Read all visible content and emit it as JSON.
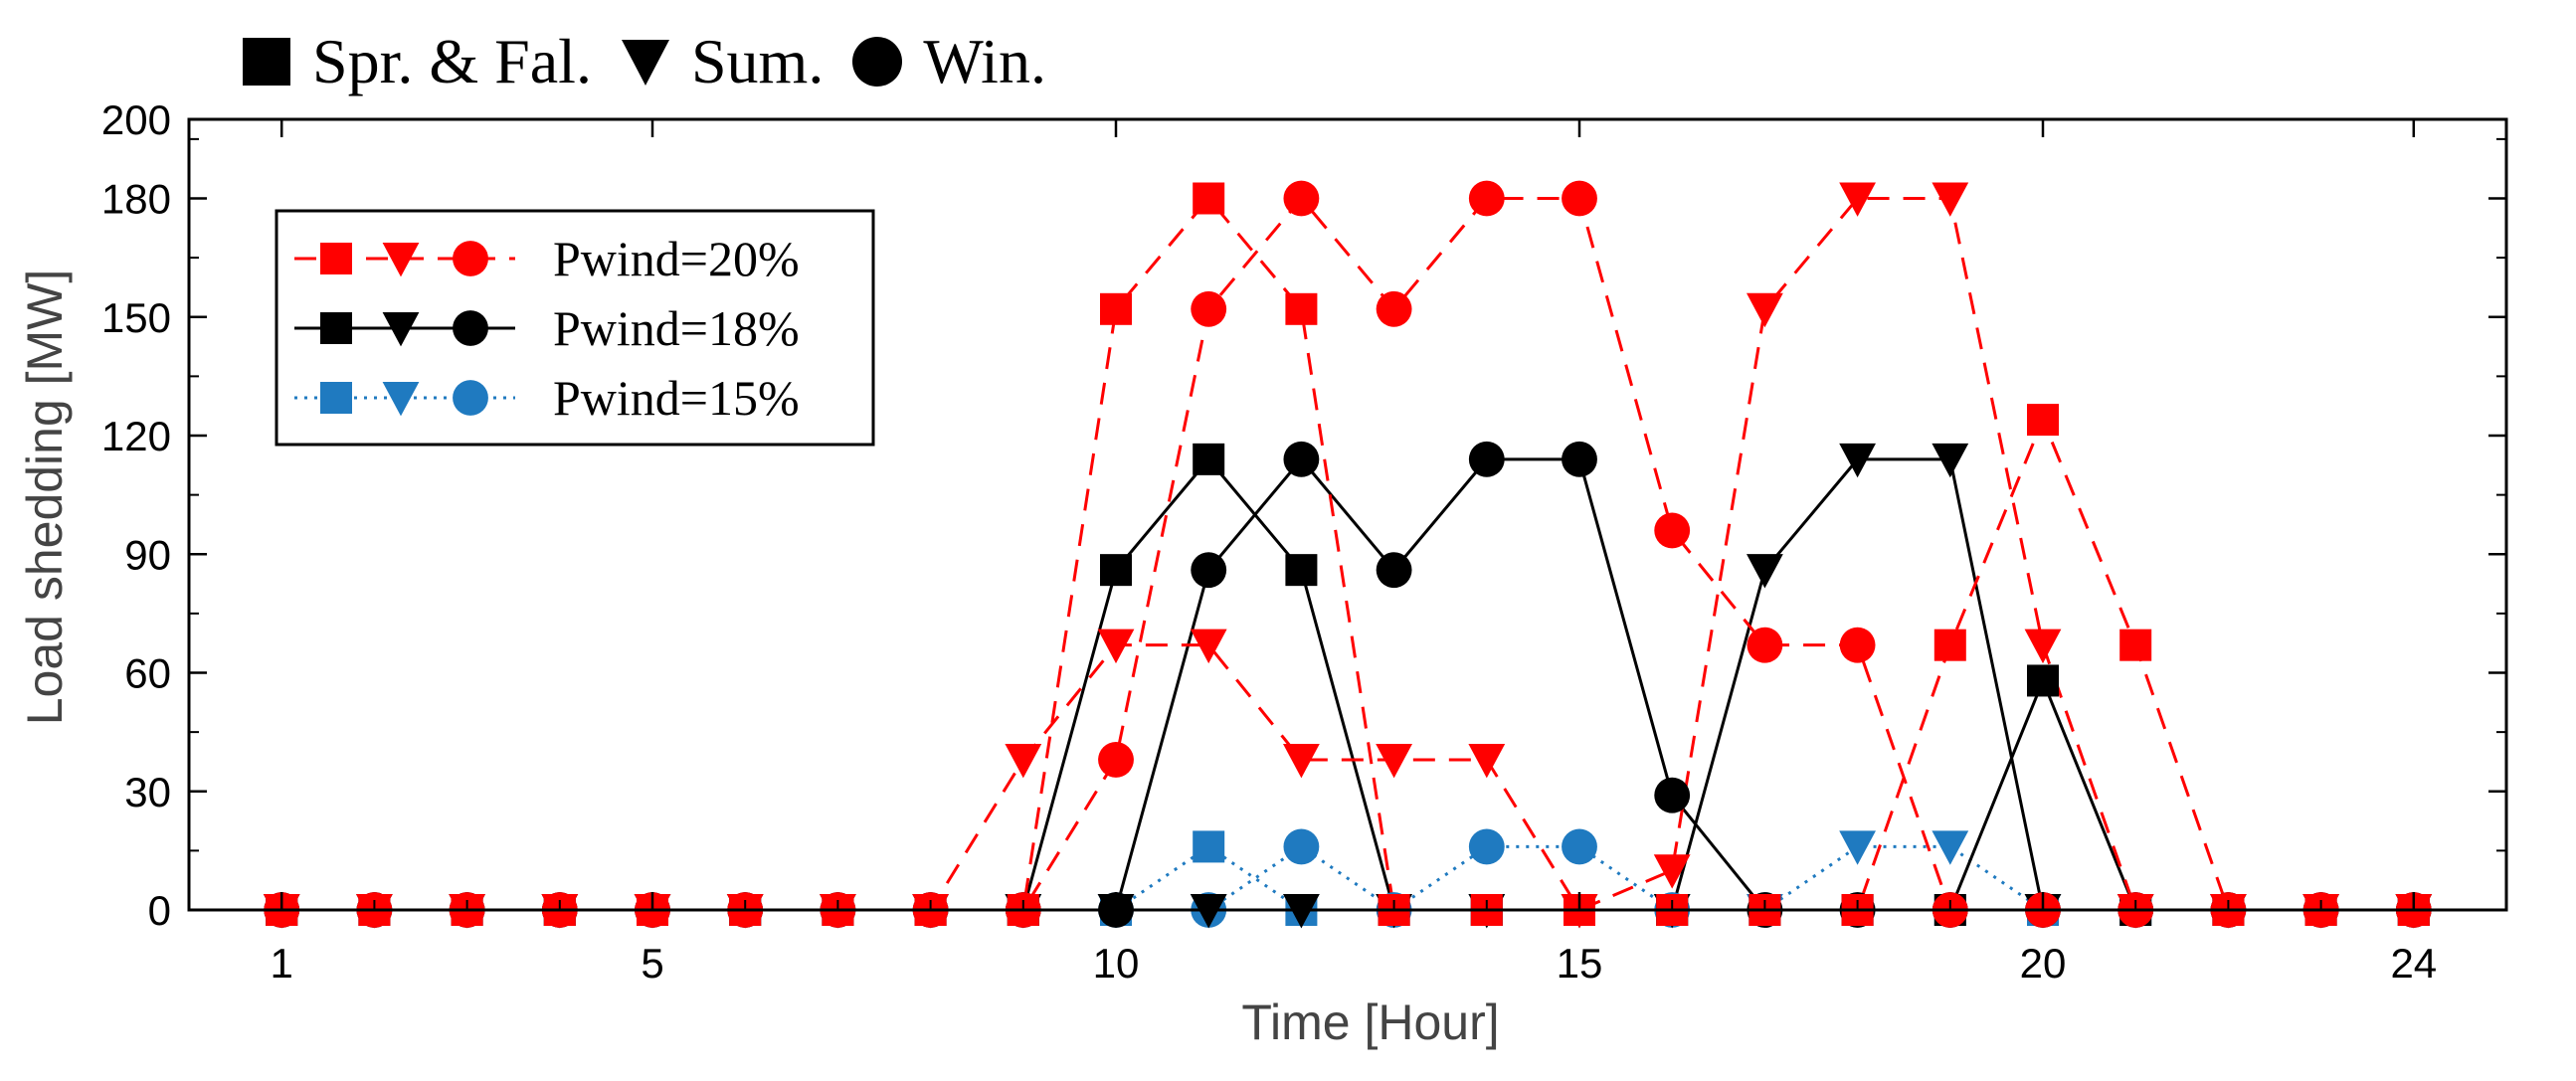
{
  "season_legend": [
    {
      "label": "Spr. & Fal.",
      "marker": "square"
    },
    {
      "label": "Sum.",
      "marker": "triangle-down"
    },
    {
      "label": "Win.",
      "marker": "circle"
    }
  ],
  "chart_data": {
    "type": "line",
    "xlabel": "Time [Hour]",
    "ylabel": "Load shedding [MW]",
    "xlim": [
      0,
      25
    ],
    "ylim": [
      0,
      200
    ],
    "xticks": [
      1,
      5,
      10,
      15,
      20,
      24
    ],
    "yticks": [
      0,
      30,
      60,
      90,
      120,
      150,
      180,
      200
    ],
    "x": [
      1,
      2,
      3,
      4,
      5,
      6,
      7,
      8,
      9,
      10,
      11,
      12,
      13,
      14,
      15,
      16,
      17,
      18,
      19,
      20,
      21,
      22,
      23,
      24
    ],
    "legend_position": "upper-left",
    "colors": {
      "p20": "#ff0000",
      "p18": "#000000",
      "p15": "#1f7ac0"
    },
    "legend": [
      {
        "label": "Pwind=20%",
        "color": "#ff0000",
        "dash": "dashed"
      },
      {
        "label": "Pwind=18%",
        "color": "#000000",
        "dash": "solid"
      },
      {
        "label": "Pwind=15%",
        "color": "#1f7ac0",
        "dash": "dotted"
      }
    ],
    "series": [
      {
        "group": "p20",
        "color": "#ff0000",
        "dash": "dashed",
        "marker": "square",
        "values": [
          0,
          0,
          0,
          0,
          0,
          0,
          0,
          0,
          0,
          152,
          180,
          152,
          0,
          0,
          0,
          0,
          0,
          0,
          67,
          124,
          67,
          0,
          0,
          0
        ]
      },
      {
        "group": "p20",
        "color": "#ff0000",
        "dash": "dashed",
        "marker": "triangle-down",
        "values": [
          0,
          0,
          0,
          0,
          0,
          0,
          0,
          0,
          38,
          67,
          67,
          38,
          38,
          38,
          0,
          10,
          152,
          180,
          180,
          67,
          0,
          0,
          0,
          0
        ]
      },
      {
        "group": "p20",
        "color": "#ff0000",
        "dash": "dashed",
        "marker": "circle",
        "values": [
          0,
          0,
          0,
          0,
          0,
          0,
          0,
          0,
          0,
          38,
          152,
          180,
          152,
          180,
          180,
          96,
          67,
          67,
          0,
          0,
          0,
          0,
          0,
          0
        ]
      },
      {
        "group": "p18",
        "color": "#000000",
        "dash": "solid",
        "marker": "square",
        "values": [
          0,
          0,
          0,
          0,
          0,
          0,
          0,
          0,
          0,
          86,
          114,
          86,
          0,
          0,
          0,
          0,
          0,
          0,
          0,
          58,
          0,
          0,
          0,
          0
        ]
      },
      {
        "group": "p18",
        "color": "#000000",
        "dash": "solid",
        "marker": "triangle-down",
        "values": [
          0,
          0,
          0,
          0,
          0,
          0,
          0,
          0,
          0,
          0,
          0,
          0,
          0,
          0,
          0,
          0,
          86,
          114,
          114,
          0,
          0,
          0,
          0,
          0
        ]
      },
      {
        "group": "p18",
        "color": "#000000",
        "dash": "solid",
        "marker": "circle",
        "values": [
          0,
          0,
          0,
          0,
          0,
          0,
          0,
          0,
          0,
          0,
          86,
          114,
          86,
          114,
          114,
          29,
          0,
          0,
          0,
          0,
          0,
          0,
          0,
          0
        ]
      },
      {
        "group": "p15",
        "color": "#1f7ac0",
        "dash": "dotted",
        "marker": "square",
        "values": [
          0,
          0,
          0,
          0,
          0,
          0,
          0,
          0,
          0,
          0,
          16,
          0,
          0,
          0,
          0,
          0,
          0,
          0,
          0,
          0,
          0,
          0,
          0,
          0
        ]
      },
      {
        "group": "p15",
        "color": "#1f7ac0",
        "dash": "dotted",
        "marker": "triangle-down",
        "values": [
          0,
          0,
          0,
          0,
          0,
          0,
          0,
          0,
          0,
          0,
          0,
          0,
          0,
          0,
          0,
          0,
          0,
          16,
          16,
          0,
          0,
          0,
          0,
          0
        ]
      },
      {
        "group": "p15",
        "color": "#1f7ac0",
        "dash": "dotted",
        "marker": "circle",
        "values": [
          0,
          0,
          0,
          0,
          0,
          0,
          0,
          0,
          0,
          0,
          0,
          16,
          0,
          16,
          16,
          0,
          0,
          0,
          0,
          0,
          0,
          0,
          0,
          0
        ]
      }
    ]
  }
}
